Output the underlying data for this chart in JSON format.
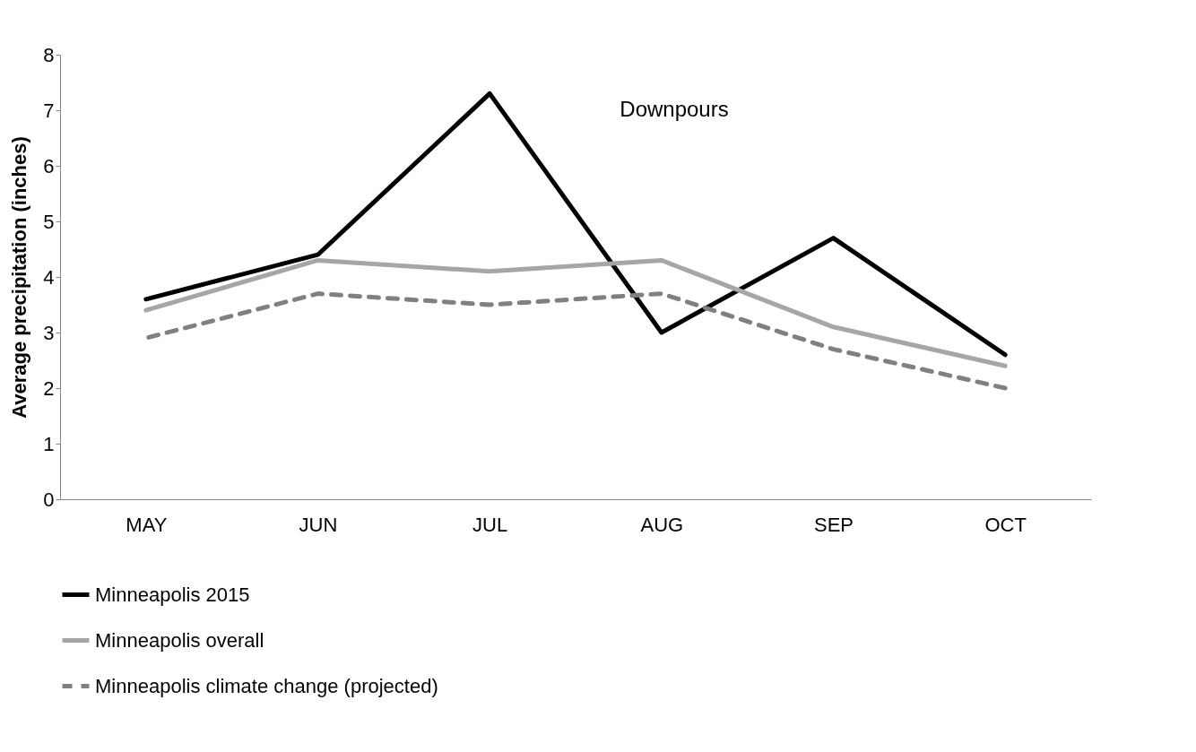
{
  "chart_data": {
    "type": "line",
    "ylabel": "Average precipitation (inches)",
    "categories": [
      "MAY",
      "JUN",
      "JUL",
      "AUG",
      "SEP",
      "OCT"
    ],
    "series": [
      {
        "name": "Minneapolis 2015",
        "color": "#000000",
        "values": [
          3.6,
          4.4,
          7.3,
          3.0,
          4.7,
          2.6
        ],
        "line_style": "solid"
      },
      {
        "name": "Minneapolis overall",
        "color": "#a6a6a6",
        "values": [
          3.4,
          4.3,
          4.1,
          4.3,
          3.1,
          2.4
        ],
        "line_style": "solid"
      },
      {
        "name": "Minneapolis climate change (projected)",
        "color": "#808080",
        "values": [
          2.9,
          3.7,
          3.5,
          3.7,
          2.7,
          2.0
        ],
        "line_style": "dashed"
      }
    ],
    "ylim": [
      0,
      8
    ],
    "yticks": [
      0,
      1,
      2,
      3,
      4,
      5,
      6,
      7,
      8
    ],
    "grid": false,
    "legend": "bottom",
    "marker": "none",
    "annotations": [
      "Downpours"
    ]
  }
}
